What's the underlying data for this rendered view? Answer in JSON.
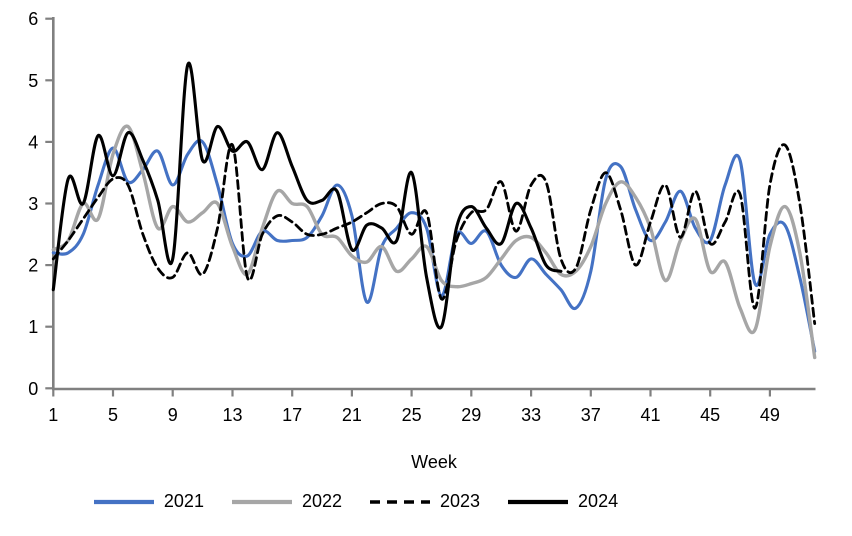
{
  "chart_data": {
    "type": "line",
    "title": "",
    "xlabel": "Week",
    "ylabel": "",
    "xlim": [
      1,
      52
    ],
    "ylim": [
      0,
      6
    ],
    "grid": false,
    "legend_position": "bottom-center",
    "axis_color": "#808080",
    "text_color": "#000000",
    "x_ticks": [
      1,
      5,
      9,
      13,
      17,
      21,
      25,
      29,
      33,
      37,
      41,
      45,
      49
    ],
    "y_ticks": [
      0,
      1,
      2,
      3,
      4,
      5,
      6
    ],
    "x_start_week": 1,
    "series": [
      {
        "name": "2021",
        "color": "#4472C4",
        "dash": null,
        "values": [
          2.2,
          2.2,
          2.5,
          3.3,
          3.9,
          3.35,
          3.55,
          3.85,
          3.3,
          3.8,
          4.0,
          3.3,
          2.35,
          2.15,
          2.55,
          2.4,
          2.4,
          2.45,
          2.8,
          3.3,
          2.8,
          1.4,
          2.3,
          2.6,
          2.85,
          2.6,
          1.5,
          2.5,
          2.35,
          2.55,
          2.0,
          1.8,
          2.1,
          1.85,
          1.6,
          1.3,
          1.9,
          3.4,
          3.6,
          2.9,
          2.4,
          2.7,
          3.2,
          2.6,
          2.4,
          3.3,
          3.7,
          1.7,
          2.5,
          2.65,
          1.8,
          0.6
        ]
      },
      {
        "name": "2022",
        "color": "#A6A6A6",
        "dash": null,
        "values": [
          2.25,
          2.4,
          3.0,
          2.75,
          3.8,
          4.25,
          3.5,
          2.6,
          2.95,
          2.7,
          2.85,
          3.0,
          2.3,
          1.85,
          2.6,
          3.2,
          3.0,
          2.95,
          2.5,
          2.45,
          2.15,
          2.05,
          2.3,
          1.9,
          2.1,
          2.3,
          1.75,
          1.65,
          1.7,
          1.8,
          2.1,
          2.4,
          2.45,
          2.2,
          1.85,
          1.9,
          2.3,
          3.0,
          3.35,
          3.1,
          2.6,
          1.75,
          2.4,
          2.75,
          1.9,
          2.05,
          1.3,
          0.95,
          2.3,
          2.95,
          2.2,
          0.5
        ]
      },
      {
        "name": "2023",
        "color": "#000000",
        "dash": "8 5",
        "values": [
          2.1,
          2.4,
          2.75,
          3.1,
          3.4,
          3.3,
          2.5,
          1.95,
          1.8,
          2.2,
          1.85,
          2.6,
          3.95,
          1.8,
          2.5,
          2.8,
          2.7,
          2.5,
          2.5,
          2.6,
          2.7,
          2.85,
          3.0,
          2.95,
          2.5,
          2.85,
          1.45,
          2.4,
          2.85,
          2.9,
          3.35,
          2.55,
          3.3,
          3.35,
          2.1,
          1.95,
          2.9,
          3.5,
          2.9,
          2.0,
          2.7,
          3.3,
          2.45,
          3.2,
          2.35,
          2.7,
          3.15,
          1.3,
          3.3,
          3.95,
          3.0,
          1.05
        ]
      },
      {
        "name": "2024",
        "color": "#000000",
        "dash": null,
        "values": [
          1.6,
          3.4,
          3.0,
          4.1,
          3.45,
          4.15,
          3.7,
          3.05,
          2.1,
          5.25,
          3.7,
          4.25,
          3.85,
          4.0,
          3.55,
          4.15,
          3.6,
          3.05,
          3.05,
          3.2,
          2.25,
          2.65,
          2.6,
          2.4,
          3.5,
          1.8,
          1.0,
          2.6,
          2.95,
          2.6,
          2.35,
          3.0,
          2.6,
          2.0,
          1.9
        ]
      }
    ]
  }
}
